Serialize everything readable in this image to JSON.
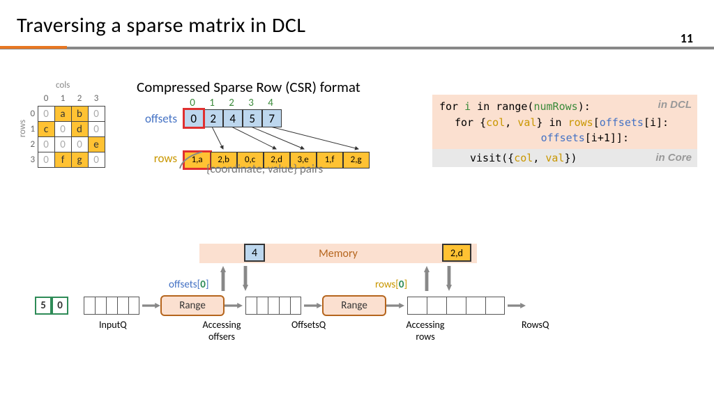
{
  "title": "Traversing a sparse matrix in DCL",
  "page_number": "11",
  "colors": {
    "accent": "#e87722",
    "blue": "#4472c4",
    "yellow": "#ffc233",
    "lightblue": "#bdd7ee",
    "peach": "#fbe0d0",
    "green": "#3a8a3a",
    "gold": "#c99700"
  },
  "matrix": {
    "cols_label": "cols",
    "rows_label": "rows",
    "col_indices": [
      "0",
      "1",
      "2",
      "3"
    ],
    "row_indices": [
      "0",
      "1",
      "2",
      "3"
    ],
    "grid": [
      [
        {
          "v": "0"
        },
        {
          "v": "a",
          "nz": true
        },
        {
          "v": "b",
          "nz": true
        },
        {
          "v": "0"
        }
      ],
      [
        {
          "v": "c",
          "nz": true
        },
        {
          "v": "0"
        },
        {
          "v": "d",
          "nz": true
        },
        {
          "v": "0"
        }
      ],
      [
        {
          "v": "0"
        },
        {
          "v": "0"
        },
        {
          "v": "0"
        },
        {
          "v": "e",
          "nz": true
        }
      ],
      [
        {
          "v": "0"
        },
        {
          "v": "f",
          "nz": true
        },
        {
          "v": "g",
          "nz": true
        },
        {
          "v": "0"
        }
      ]
    ]
  },
  "csr": {
    "title": "Compressed Sparse Row (CSR) format",
    "offsets_label": "offsets",
    "rows_label": "rows",
    "offset_indices": [
      "0",
      "1",
      "2",
      "3",
      "4"
    ],
    "offsets": [
      "0",
      "2",
      "4",
      "5",
      "7"
    ],
    "rows": [
      "1,a",
      "2,b",
      "0,c",
      "2,d",
      "3,e",
      "1,f",
      "2,g"
    ],
    "pairs_note": "{coordinate, value} pairs",
    "highlight_offset_index": 0,
    "highlight_row_index": 0
  },
  "code": {
    "dcl_tag": "in DCL",
    "core_tag": "in Core",
    "line1_for": "for ",
    "line1_i": "i",
    "line1_in": " in range(",
    "line1_numrows": "numRows",
    "line1_end": "):",
    "line2_for": "for {",
    "line2_col": "col",
    "line2_comma": ", ",
    "line2_val": "val",
    "line2_in": "} in ",
    "line2_rows": "rows",
    "line2_br": "[",
    "line2_off": "offsets",
    "line2_idx1": "[i]:",
    "line3_off": "offsets",
    "line3_idx2": "[i+1]]:",
    "line4": "visit({",
    "line4_col": "col",
    "line4_val": "val",
    "line4_end": "})"
  },
  "pipeline": {
    "memory_label": "Memory",
    "mem_offset_val": "4",
    "mem_row_val": "2,d",
    "input_file": [
      "5",
      "0"
    ],
    "offsets_idx_label": "offsets[",
    "offsets_idx_val": "0",
    "offsets_idx_close": "]",
    "rows_idx_label": "rows[",
    "rows_idx_val": "0",
    "rows_idx_close": "]",
    "range_label": "Range",
    "inputq_label": "InputQ",
    "accessing_offsets": "Accessing\noffsers",
    "offsetsq_label": "OffsetsQ",
    "accessing_rows": "Accessing\nrows",
    "rowsq_label": "RowsQ"
  }
}
